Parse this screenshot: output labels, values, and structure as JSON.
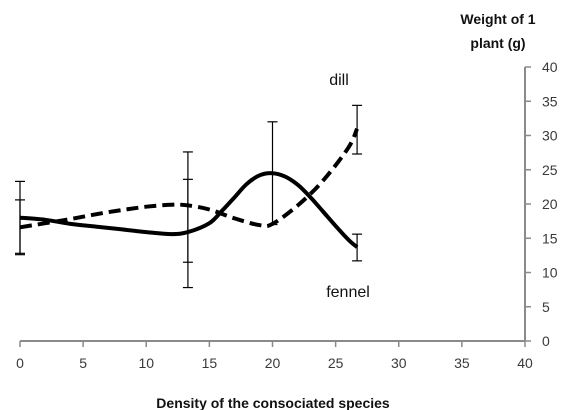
{
  "chart_data": {
    "type": "line",
    "xlabel": "Density of the consociated  species",
    "ylabel_line1": "Weight of 1",
    "ylabel_line2": "plant (g)",
    "xlim": [
      0,
      40
    ],
    "ylim": [
      0,
      40
    ],
    "x_ticks": [
      0,
      5,
      10,
      15,
      20,
      25,
      30,
      35,
      40
    ],
    "y_ticks": [
      0,
      5,
      10,
      15,
      20,
      25,
      30,
      35,
      40
    ],
    "y_axis_side": "right",
    "grid": false,
    "series": [
      {
        "name": "dill",
        "style": "dashed",
        "color": "#000000",
        "x": [
          0,
          2,
          4,
          6,
          8,
          10,
          12,
          13.3,
          15,
          17,
          19,
          20,
          22,
          24,
          26,
          26.7
        ],
        "y": [
          16.6,
          17.2,
          17.8,
          18.5,
          19.1,
          19.6,
          19.9,
          19.8,
          19.2,
          17.9,
          16.9,
          17.1,
          19.8,
          23.4,
          28.2,
          31.0
        ],
        "error_bars": [
          {
            "x": 0,
            "low": 12.6,
            "high": 20.6
          },
          {
            "x": 13.3,
            "low": 11.5,
            "high": 23.6
          },
          {
            "x": 20,
            "low": 17.0,
            "high": 32.0
          },
          {
            "x": 26.7,
            "low": 27.3,
            "high": 34.4
          }
        ]
      },
      {
        "name": "fennel",
        "style": "solid",
        "color": "#000000",
        "x": [
          0,
          2,
          4,
          6,
          8,
          10,
          12,
          13.3,
          15,
          16,
          17,
          18,
          19,
          20,
          21,
          22,
          23,
          24,
          25,
          26,
          26.7
        ],
        "y": [
          18.0,
          17.7,
          17.1,
          16.7,
          16.3,
          15.9,
          15.6,
          15.9,
          17.2,
          19.0,
          21.0,
          23.0,
          24.2,
          24.5,
          24.0,
          22.8,
          21.0,
          18.9,
          16.8,
          14.8,
          13.7
        ],
        "error_bars": [
          {
            "x": 0,
            "low": 12.8,
            "high": 23.3
          },
          {
            "x": 13.3,
            "low": 7.8,
            "high": 27.6
          },
          {
            "x": 26.7,
            "low": 11.7,
            "high": 15.6
          }
        ]
      }
    ]
  }
}
